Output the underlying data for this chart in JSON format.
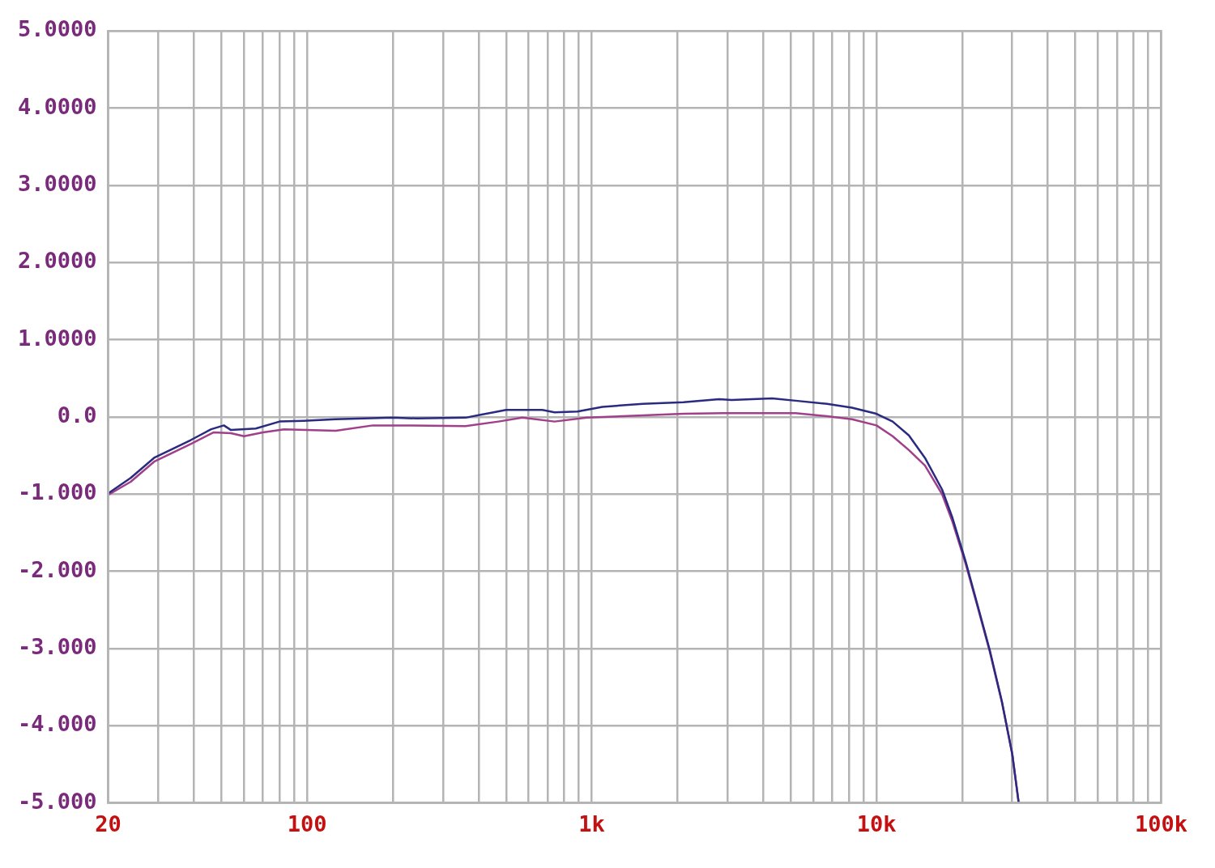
{
  "chart_data": {
    "type": "line",
    "log": "x",
    "grid": true,
    "legend": false,
    "marker": "none",
    "line_style": "solid",
    "xlim": [
      20,
      100000
    ],
    "xticks": [
      {
        "value": 20,
        "label": "20"
      },
      {
        "value": 30,
        "label": null
      },
      {
        "value": 40,
        "label": null
      },
      {
        "value": 50,
        "label": null
      },
      {
        "value": 60,
        "label": null
      },
      {
        "value": 70,
        "label": null
      },
      {
        "value": 80,
        "label": null
      },
      {
        "value": 90,
        "label": null
      },
      {
        "value": 100,
        "label": "100"
      },
      {
        "value": 200,
        "label": null
      },
      {
        "value": 300,
        "label": null
      },
      {
        "value": 400,
        "label": null
      },
      {
        "value": 500,
        "label": null
      },
      {
        "value": 600,
        "label": null
      },
      {
        "value": 700,
        "label": null
      },
      {
        "value": 800,
        "label": null
      },
      {
        "value": 900,
        "label": null
      },
      {
        "value": 1000,
        "label": "1k"
      },
      {
        "value": 2000,
        "label": null
      },
      {
        "value": 3000,
        "label": null
      },
      {
        "value": 4000,
        "label": null
      },
      {
        "value": 5000,
        "label": null
      },
      {
        "value": 6000,
        "label": null
      },
      {
        "value": 7000,
        "label": null
      },
      {
        "value": 8000,
        "label": null
      },
      {
        "value": 9000,
        "label": null
      },
      {
        "value": 10000,
        "label": "10k"
      },
      {
        "value": 20000,
        "label": null
      },
      {
        "value": 30000,
        "label": null
      },
      {
        "value": 40000,
        "label": null
      },
      {
        "value": 50000,
        "label": null
      },
      {
        "value": 60000,
        "label": null
      },
      {
        "value": 70000,
        "label": null
      },
      {
        "value": 80000,
        "label": null
      },
      {
        "value": 90000,
        "label": null
      },
      {
        "value": 100000,
        "label": "100k"
      }
    ],
    "ylim": [
      -5,
      5
    ],
    "yticks": [
      {
        "value": -5,
        "label": "-5.000"
      },
      {
        "value": -4,
        "label": "-4.000"
      },
      {
        "value": -3,
        "label": "-3.000"
      },
      {
        "value": -2,
        "label": "-2.000"
      },
      {
        "value": -1,
        "label": "-1.000"
      },
      {
        "value": 0,
        "label": "0.0"
      },
      {
        "value": 1,
        "label": "1.0000"
      },
      {
        "value": 2,
        "label": "2.0000"
      },
      {
        "value": 3,
        "label": "3.0000"
      },
      {
        "value": 4,
        "label": "4.0000"
      },
      {
        "value": 5,
        "label": "5.0000"
      }
    ],
    "series": [
      {
        "color": "#2a2a80",
        "x": [
          20,
          24,
          29,
          39,
          46,
          51,
          54,
          66,
          80,
          97,
          126,
          200,
          243,
          360,
          410,
          500,
          670,
          740,
          890,
          1090,
          1510,
          2100,
          2800,
          3100,
          4300,
          5200,
          6700,
          8200,
          10000,
          11400,
          13000,
          14800,
          17000,
          18500,
          20600,
          22700,
          25000,
          27600,
          30000,
          31600
        ],
        "values": [
          -0.99,
          -0.79,
          -0.53,
          -0.3,
          -0.16,
          -0.11,
          -0.17,
          -0.15,
          -0.06,
          -0.05,
          -0.03,
          -0.01,
          -0.02,
          -0.01,
          0.03,
          0.09,
          0.09,
          0.06,
          0.07,
          0.13,
          0.17,
          0.19,
          0.23,
          0.22,
          0.24,
          0.21,
          0.17,
          0.12,
          0.04,
          -0.06,
          -0.24,
          -0.53,
          -0.94,
          -1.31,
          -1.88,
          -2.45,
          -3.02,
          -3.69,
          -4.37,
          -5.0
        ]
      },
      {
        "color": "#a0408a",
        "x": [
          20,
          24,
          29,
          39,
          47,
          54,
          60,
          70,
          83,
          126,
          170,
          230,
          360,
          470,
          570,
          740,
          960,
          1510,
          2100,
          2900,
          5200,
          6700,
          8200,
          10000,
          11400,
          13000,
          14800,
          17000,
          18500,
          20600,
          22700,
          25000,
          27600,
          30000,
          31600
        ],
        "values": [
          -1.01,
          -0.84,
          -0.58,
          -0.35,
          -0.2,
          -0.21,
          -0.25,
          -0.2,
          -0.16,
          -0.18,
          -0.11,
          -0.11,
          -0.12,
          -0.06,
          -0.01,
          -0.06,
          -0.01,
          0.02,
          0.04,
          0.05,
          0.05,
          0.01,
          -0.03,
          -0.11,
          -0.25,
          -0.43,
          -0.63,
          -1.0,
          -1.36,
          -1.91,
          -2.47,
          -3.04,
          -3.7,
          -4.37,
          -5.0
        ]
      }
    ]
  }
}
